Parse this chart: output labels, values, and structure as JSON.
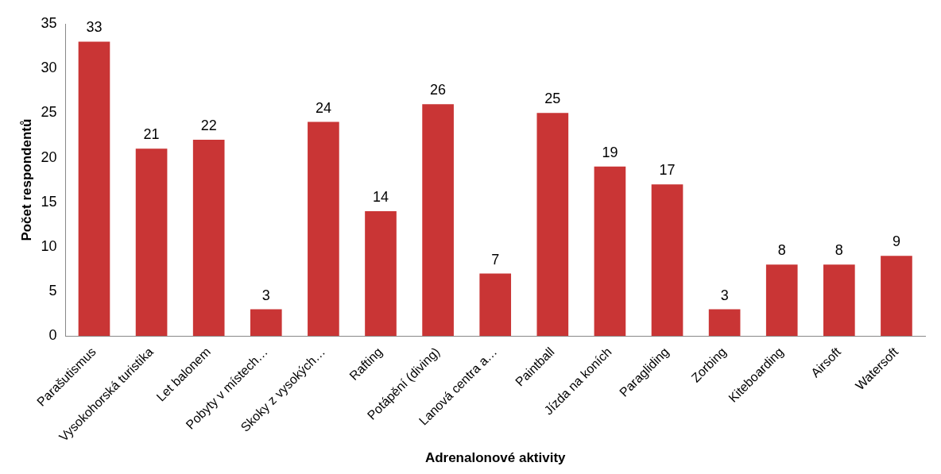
{
  "chart_data": {
    "type": "bar",
    "xlabel": "Adrenalonové aktivity",
    "ylabel": "Počet respondentů",
    "categories": [
      "Parašutismus",
      "Vysokohorská turistika",
      "Let balonem",
      "Pobyty v místech…",
      "Skoky z vysokých…",
      "Rafting",
      "Potápění (diving)",
      "Lanová centra a…",
      "Paintball",
      "Jízda na koních",
      "Paragliding",
      "Zorbing",
      "Kiteboarding",
      "Airsoft",
      "Watersoft"
    ],
    "values": [
      33,
      21,
      22,
      3,
      24,
      14,
      26,
      7,
      25,
      19,
      17,
      3,
      8,
      8,
      9
    ],
    "color": "#c93535",
    "ylim": [
      0,
      35
    ],
    "yticks": [
      0,
      5,
      10,
      15,
      20,
      25,
      30,
      35
    ],
    "grid": false,
    "legend": false,
    "data_labels": true
  }
}
